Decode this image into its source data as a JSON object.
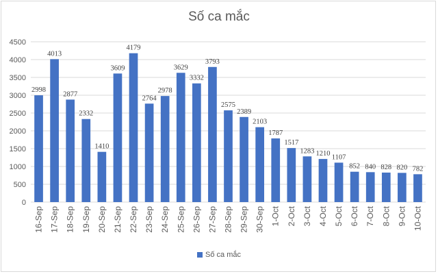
{
  "chart_data": {
    "type": "bar",
    "title": "Số ca mắc",
    "categories": [
      "16-Sep",
      "17-Sep",
      "18-Sep",
      "19-Sep",
      "20-Sep",
      "21-Sep",
      "22-Sep",
      "23-Sep",
      "24-Sep",
      "25-Sep",
      "26-Sep",
      "27-Sep",
      "28-Sep",
      "29-Sep",
      "30-Sep",
      "1-Oct",
      "2-Oct",
      "3-Oct",
      "4-Oct",
      "5-Oct",
      "6-Oct",
      "7-Oct",
      "8-Oct",
      "9-Oct",
      "10-Oct"
    ],
    "series": [
      {
        "name": "Số ca mắc",
        "values": [
          2998,
          4013,
          2877,
          2332,
          1410,
          3609,
          4179,
          2764,
          2978,
          3629,
          3332,
          3793,
          2575,
          2389,
          2103,
          1787,
          1517,
          1283,
          1210,
          1107,
          852,
          840,
          828,
          820,
          782
        ]
      }
    ],
    "ylim": [
      0,
      4500
    ],
    "yticks": [
      0,
      500,
      1000,
      1500,
      2000,
      2500,
      3000,
      3500,
      4000,
      4500
    ],
    "grid": true,
    "legend": "bottom",
    "bar_color": "#4472c4",
    "grid_color": "#d9d9d9"
  }
}
